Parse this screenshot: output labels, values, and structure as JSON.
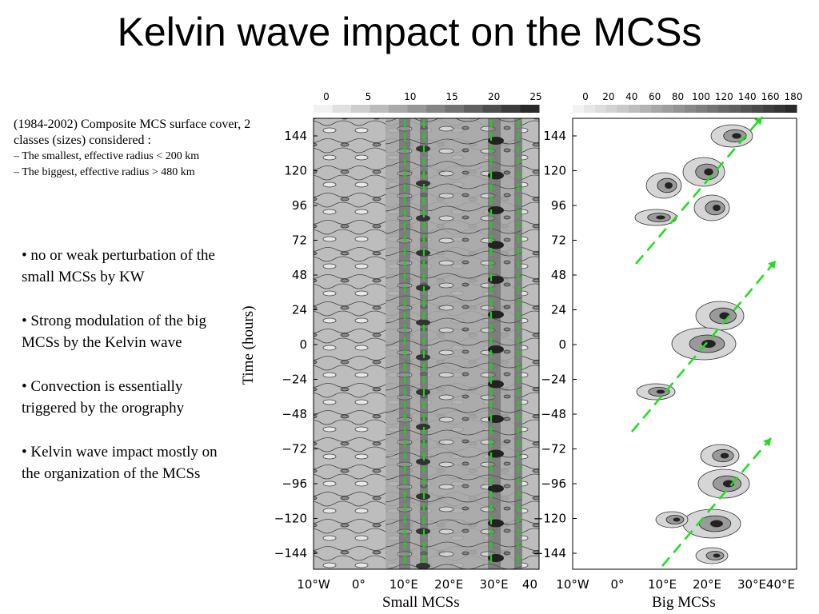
{
  "slide": {
    "title": "Kelvin wave impact on the MCSs",
    "description": {
      "heading": "(1984-2002) Composite MCS surface cover, 2 classes (sizes) considered :",
      "lines": [
        "– The smallest, effective radius < 200 km",
        "– The biggest,  effective radius > 480 km"
      ]
    },
    "bullets": [
      "• no or weak perturbation of the small MCSs by KW",
      "• Strong modulation of the big MCSs by the Kelvin wave",
      "• Convection is essentially triggered by the orography",
      "• Kelvin wave impact mostly on the organization of the MCSs"
    ]
  },
  "figure": {
    "y_axis_label": "Time (hours)",
    "y_ticks": [
      "144",
      "120",
      "96",
      "72",
      "48",
      "24",
      "0",
      "−24",
      "−48",
      "−72",
      "−96",
      "−120",
      "−144"
    ],
    "x_ticks_left": [
      "10°W",
      "0°",
      "10°E",
      "20°E",
      "30°E",
      "40"
    ],
    "x_ticks_right": [
      "10°W",
      "0°",
      "10°E",
      "20°E",
      "30°E",
      "40°E"
    ],
    "left_panel": {
      "title": "Small MCSs",
      "colorbar_labels": [
        "0",
        "5",
        "10",
        "15",
        "20",
        "25"
      ]
    },
    "right_panel": {
      "title": "Big MCSs",
      "colorbar_labels": [
        "0",
        "20",
        "40",
        "60",
        "80",
        "100",
        "120",
        "140",
        "160",
        "180"
      ]
    },
    "colors": {
      "dashed_lines": "#22cc22",
      "arrows": "#22dd22"
    }
  }
}
